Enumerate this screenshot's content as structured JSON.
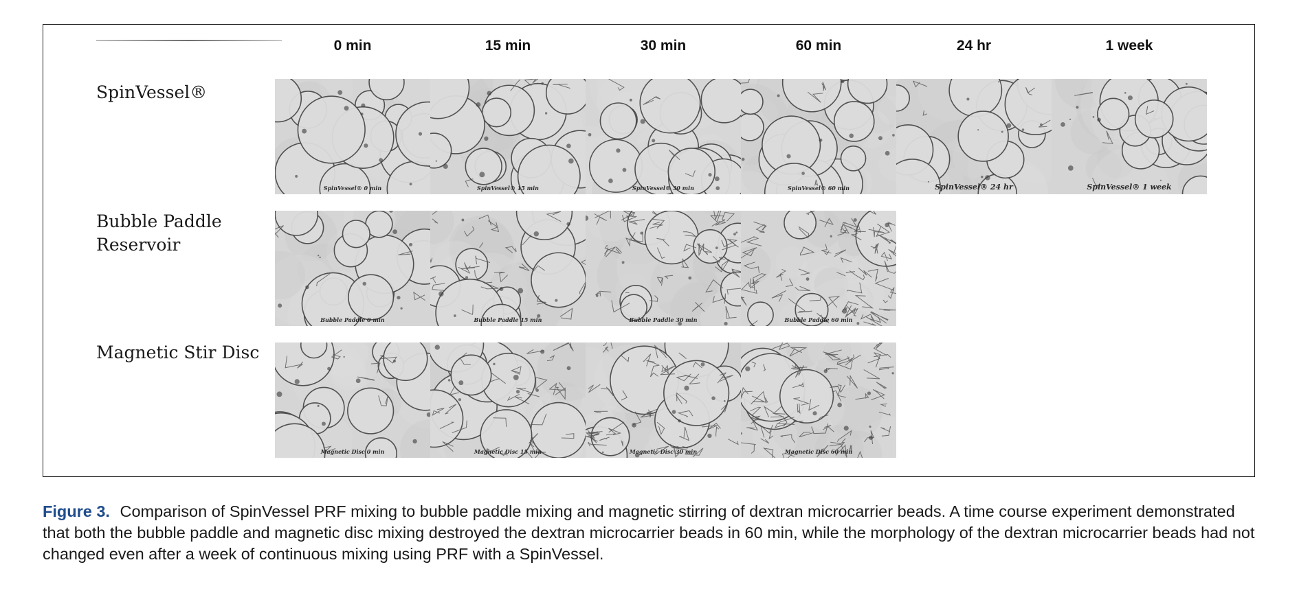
{
  "figure": {
    "time_points": [
      "0 min",
      "15 min",
      "30 min",
      "60 min",
      "24 hr",
      "1 week"
    ],
    "rows": [
      {
        "label_lines": [
          "SpinVessel®"
        ],
        "panel_captions": [
          "SpinVessel® 0 min",
          "SpinVessel® 15 min",
          "SpinVessel® 30 min",
          "SpinVessel® 60 min",
          "SpinVessel® 24 hr",
          "SpinVessel® 1 week"
        ]
      },
      {
        "label_lines": [
          "Bubble Paddle",
          "Reservoir"
        ],
        "panel_captions": [
          "Bubble Paddle 0 min",
          "Bubble Paddle 15 min",
          "Bubble Paddle 30 min",
          "Bubble Paddle 60 min"
        ]
      },
      {
        "label_lines": [
          "Magnetic Stir Disc"
        ],
        "panel_captions": [
          "Magnetic Disc 0 min",
          "Magnetic Disc 15 min",
          "Magnetic Disc 30 min",
          "Magnetic Disc 60 min"
        ]
      }
    ]
  },
  "caption": {
    "label": "Figure 3.",
    "text": "Comparison of SpinVessel PRF mixing to bubble paddle mixing and magnetic stirring of dextran microcarrier beads. A time course experiment demonstrated that both the bubble paddle and magnetic disc mixing destroyed the dextran microcarrier beads in 60 min, while the morphology of the dextran microcarrier beads had not changed even after a week of continuous mixing using PRF with a SpinVessel."
  }
}
